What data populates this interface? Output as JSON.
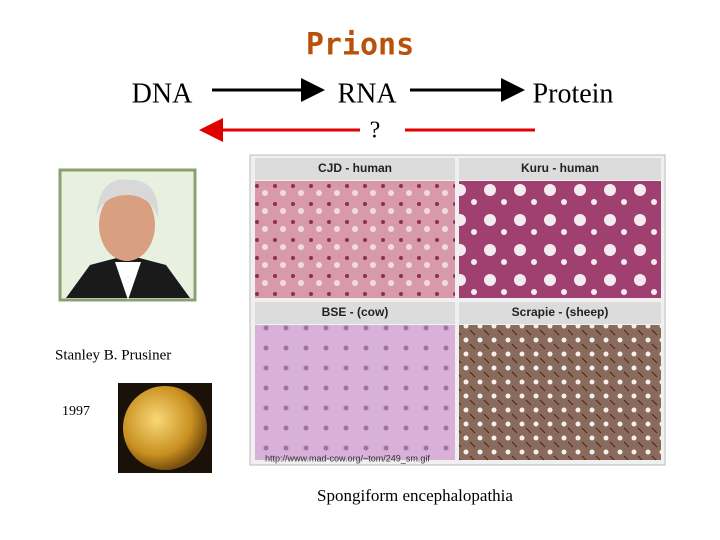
{
  "title": "Prions",
  "dogma": {
    "dna": "DNA",
    "rna": "RNA",
    "protein": "Protein",
    "question": "?"
  },
  "portrait": {
    "caption": "Stanley B. Prusiner",
    "year": "1997"
  },
  "micrographs": {
    "panels": [
      "CJD - human",
      "Kuru - human",
      "BSE - (cow)",
      "Scrapie - (sheep)"
    ],
    "source": "http://www.mad-cow.org/~tom/249_sm.gif"
  },
  "caption": "Spongiform encephalopathia"
}
